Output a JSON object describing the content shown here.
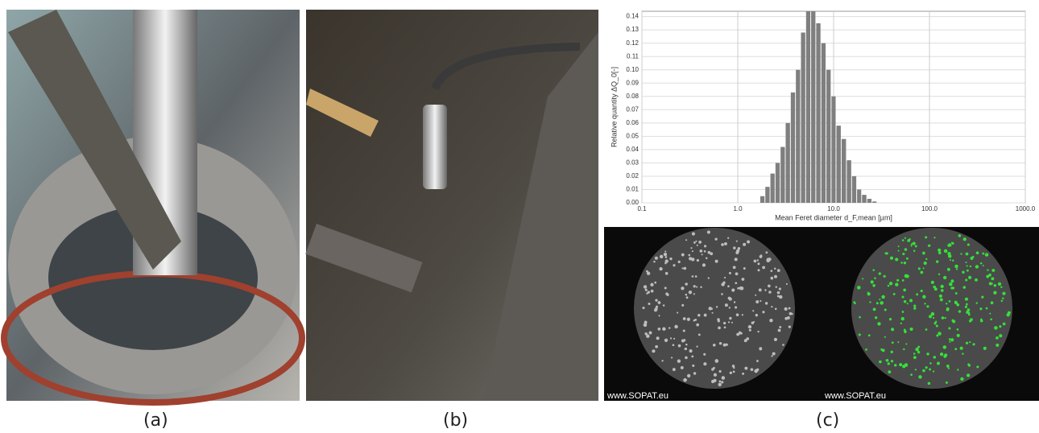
{
  "panel_labels": [
    "(a)",
    "(b)",
    "(c)"
  ],
  "watermarks": [
    "www.SOPAT.eu",
    "www.SOPAT.eu"
  ],
  "chart_data": {
    "type": "histogram",
    "x_label": "Mean Feret diameter d_F,mean [µm]",
    "y_label": "Relative quantity ΔQ_0[-]",
    "log_x": true,
    "grid": true,
    "color": "#7f7f7f",
    "bins": [
      1.7,
      1.92,
      2.17,
      2.45,
      2.77,
      3.13,
      3.54,
      4.0,
      4.52,
      5.11,
      5.77,
      6.52,
      7.37,
      8.33,
      9.41,
      10.6,
      12.0,
      13.6,
      15.4,
      17.4,
      19.6,
      22.2,
      25.1,
      28.3
    ],
    "values": [
      0.005,
      0.012,
      0.022,
      0.03,
      0.042,
      0.06,
      0.083,
      0.1,
      0.128,
      0.145,
      0.145,
      0.135,
      0.12,
      0.1,
      0.08,
      0.058,
      0.048,
      0.032,
      0.02,
      0.01,
      0.006,
      0.003,
      0.001
    ],
    "xlim": [
      0.1,
      1000
    ],
    "xticks": [
      0.1,
      {
        "value": 1,
        "label": "1.0"
      },
      {
        "value": 10,
        "label": "10.0"
      },
      {
        "value": 100,
        "label": "100.0"
      },
      {
        "value": 1000,
        "label": "1000.0"
      }
    ],
    "ylim": [
      0,
      0.144
    ],
    "yticks": [
      {
        "value": 0,
        "label": "0.00"
      },
      {
        "value": 0.01,
        "label": "0.01"
      },
      {
        "value": 0.02,
        "label": "0.02"
      },
      {
        "value": 0.03,
        "label": "0.03"
      },
      {
        "value": 0.04,
        "label": "0.04"
      },
      {
        "value": 0.05,
        "label": "0.05"
      },
      {
        "value": 0.06,
        "label": "0.06"
      },
      {
        "value": 0.07,
        "label": "0.07"
      },
      {
        "value": 0.08,
        "label": "0.08"
      },
      {
        "value": 0.09,
        "label": "0.09"
      },
      {
        "value": 0.1,
        "label": "0.10"
      },
      {
        "value": 0.11,
        "label": "0.11"
      },
      {
        "value": 0.12,
        "label": "0.12"
      },
      {
        "value": 0.13,
        "label": "0.13"
      },
      {
        "value": 0.14,
        "label": "0.14"
      }
    ]
  }
}
